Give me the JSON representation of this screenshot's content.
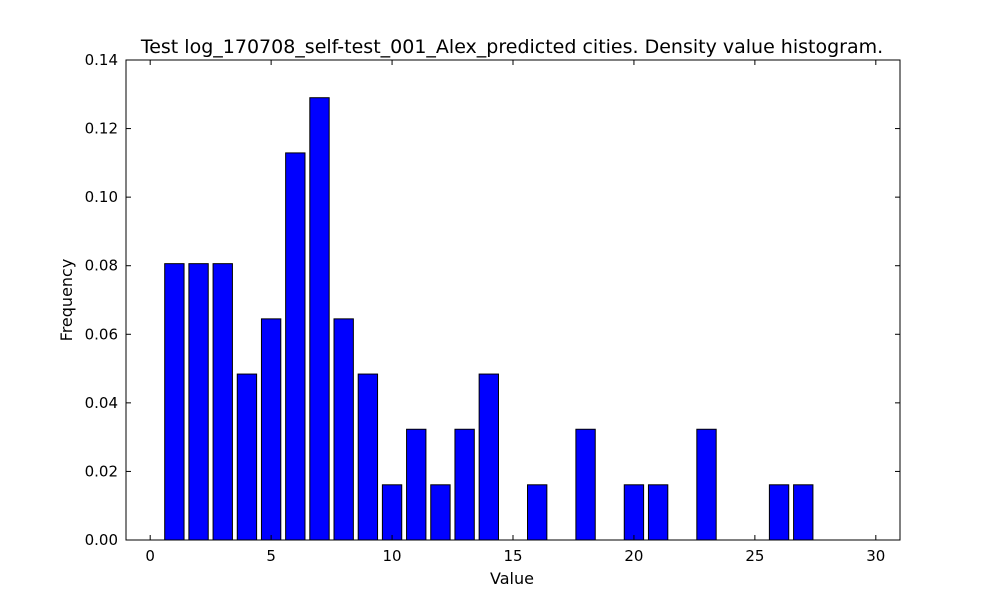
{
  "chart_data": {
    "type": "bar",
    "title": "Test log_170708_self-test_001_Alex_predicted cities. Density value histogram.",
    "xlabel": "Value",
    "ylabel": "Frequency",
    "xlim": [
      -1,
      31
    ],
    "ylim": [
      0,
      0.14
    ],
    "bar_width": 0.8,
    "x": [
      1,
      2,
      3,
      4,
      5,
      6,
      7,
      8,
      9,
      10,
      11,
      12,
      13,
      14,
      16,
      18,
      20,
      21,
      23,
      26,
      27
    ],
    "values": [
      0.0806,
      0.0806,
      0.0806,
      0.0484,
      0.0645,
      0.1129,
      0.129,
      0.0645,
      0.0484,
      0.0161,
      0.0323,
      0.0161,
      0.0323,
      0.0484,
      0.0161,
      0.0323,
      0.0161,
      0.0161,
      0.0323,
      0.0161,
      0.0161
    ],
    "xticks": [
      0,
      5,
      10,
      15,
      20,
      25,
      30
    ],
    "xtick_labels": [
      "0",
      "5",
      "10",
      "15",
      "20",
      "25",
      "30"
    ],
    "yticks": [
      0,
      0.02,
      0.04,
      0.06,
      0.08,
      0.1,
      0.12,
      0.14
    ],
    "ytick_labels": [
      "0.00",
      "0.02",
      "0.04",
      "0.06",
      "0.08",
      "0.10",
      "0.12",
      "0.14"
    ],
    "grid": false,
    "colors": {
      "bar": "#0000ff",
      "edge": "#000000"
    }
  }
}
